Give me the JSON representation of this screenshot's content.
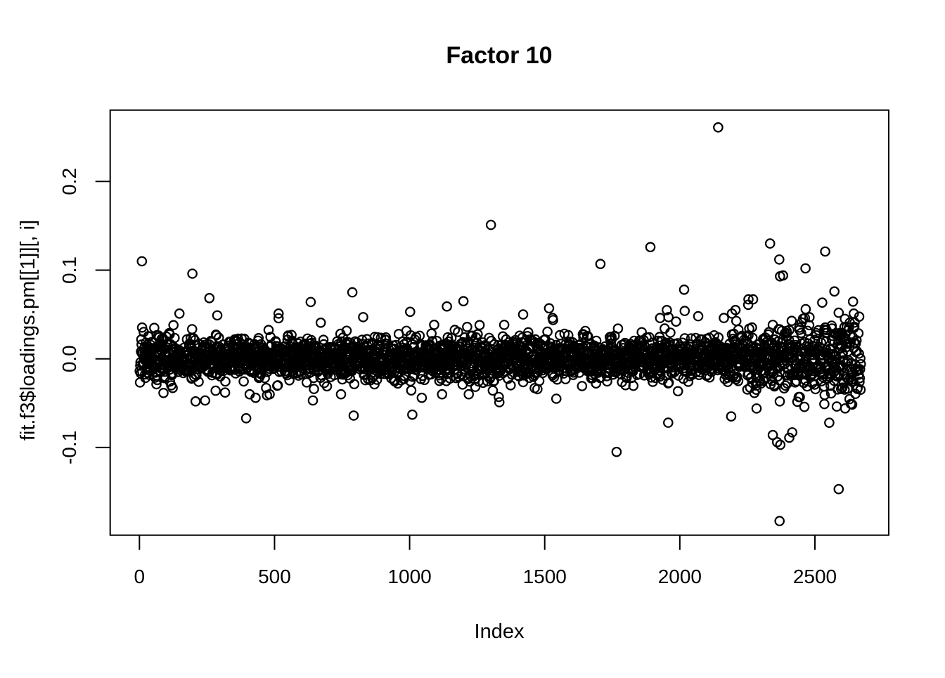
{
  "page": {
    "background_color": "#ffffff",
    "foreground_color": "#000000"
  },
  "chart_data": {
    "type": "scatter",
    "title": "Factor 10",
    "xlabel": "Index",
    "ylabel": "fit.f3$loadings.pm[[1]][, i]",
    "legend": null,
    "grid": false,
    "frame": true,
    "x_ticks": [
      {
        "value": 0,
        "label": "0"
      },
      {
        "value": 500,
        "label": "500"
      },
      {
        "value": 1000,
        "label": "1000"
      },
      {
        "value": 1500,
        "label": "1500"
      },
      {
        "value": 2000,
        "label": "2000"
      },
      {
        "value": 2500,
        "label": "2500"
      }
    ],
    "y_ticks": [
      {
        "value": -0.1,
        "label": "-0.1"
      },
      {
        "value": 0.0,
        "label": "0.0"
      },
      {
        "value": 0.1,
        "label": "0.1"
      },
      {
        "value": 0.2,
        "label": "0.2"
      }
    ],
    "xlim": [
      -105.8,
      2776.8
    ],
    "ylim": [
      -0.2,
      0.279
    ],
    "n_points": 2670,
    "x_description": "observation index 1..n",
    "marker": {
      "shape": "open-circle",
      "color": "#000000"
    },
    "band": {
      "mean": 0,
      "sd_base": 0.012,
      "sd_left_x_max": 160,
      "sd_left": 0.0145,
      "sd_mid_x_min": 1050,
      "sd_mid_x_max": 1350,
      "sd_mid": 0.013,
      "sd_right_x_min": 2200,
      "sd_right_start": 0.017,
      "sd_right_slope": 1.7e-05,
      "tail_prob": 0.025,
      "tail_mult": 1.7,
      "tail2_prob": 0.005,
      "tail2_mult": 2.3,
      "clip_abs": 0.078,
      "seed": 42
    },
    "extremes": {
      "max_point": [
        2142,
        0.261
      ],
      "min_point": [
        2369,
        -0.183
      ]
    },
    "outliers": [
      [
        9,
        0.11
      ],
      [
        196,
        0.096
      ],
      [
        259,
        0.0685
      ],
      [
        148,
        0.051
      ],
      [
        288,
        0.049
      ],
      [
        515,
        0.051
      ],
      [
        634,
        0.064
      ],
      [
        788,
        0.075
      ],
      [
        828,
        0.047
      ],
      [
        1002,
        0.053
      ],
      [
        1138,
        0.059
      ],
      [
        1199,
        0.065
      ],
      [
        1259,
        0.038
      ],
      [
        1301,
        0.151
      ],
      [
        1420,
        0.05
      ],
      [
        1516,
        0.057
      ],
      [
        1529,
        0.046
      ],
      [
        1706,
        0.107
      ],
      [
        1891,
        0.126
      ],
      [
        1927,
        0.046
      ],
      [
        1952,
        0.055
      ],
      [
        1958,
        0.047
      ],
      [
        1986,
        0.042
      ],
      [
        2016,
        0.078
      ],
      [
        2018,
        0.054
      ],
      [
        2068,
        0.048
      ],
      [
        2142,
        0.261
      ],
      [
        2163,
        0.046
      ],
      [
        2193,
        0.051
      ],
      [
        2206,
        0.055
      ],
      [
        2254,
        0.067
      ],
      [
        2271,
        0.067
      ],
      [
        2334,
        0.13
      ],
      [
        2368,
        0.112
      ],
      [
        2371,
        0.093
      ],
      [
        2382,
        0.094
      ],
      [
        2465,
        0.102
      ],
      [
        2466,
        0.056
      ],
      [
        2538,
        0.121
      ],
      [
        2572,
        0.076
      ],
      [
        2588,
        0.052
      ],
      [
        2644,
        0.051
      ],
      [
        89,
        -0.0385
      ],
      [
        208,
        -0.048
      ],
      [
        243,
        -0.047
      ],
      [
        282,
        -0.036
      ],
      [
        317,
        -0.038
      ],
      [
        395,
        -0.067
      ],
      [
        408,
        -0.04
      ],
      [
        430,
        -0.044
      ],
      [
        482,
        -0.04
      ],
      [
        642,
        -0.047
      ],
      [
        646,
        -0.034
      ],
      [
        746,
        -0.04
      ],
      [
        793,
        -0.064
      ],
      [
        1010,
        -0.063
      ],
      [
        1045,
        -0.044
      ],
      [
        1120,
        -0.04
      ],
      [
        1219,
        -0.04
      ],
      [
        1330,
        -0.043
      ],
      [
        1332,
        -0.049
      ],
      [
        1543,
        -0.045
      ],
      [
        1766,
        -0.105
      ],
      [
        1957,
        -0.072
      ],
      [
        2190,
        -0.065
      ],
      [
        2284,
        -0.056
      ],
      [
        2344,
        -0.086
      ],
      [
        2360,
        -0.094
      ],
      [
        2372,
        -0.097
      ],
      [
        2405,
        -0.089
      ],
      [
        2416,
        -0.083
      ],
      [
        2370,
        -0.048
      ],
      [
        2535,
        -0.051
      ],
      [
        2369,
        -0.183
      ],
      [
        2588,
        -0.147
      ]
    ]
  }
}
